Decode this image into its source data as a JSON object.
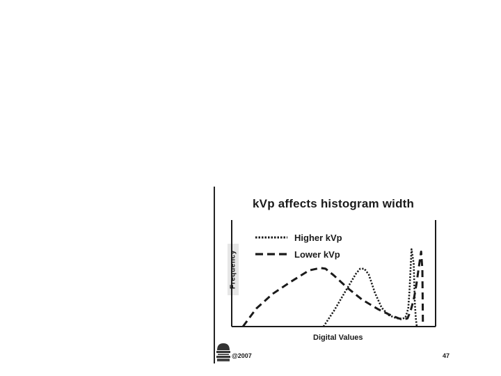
{
  "slide": {
    "copyright": "@2007",
    "page_number": "47"
  },
  "chart_data": {
    "type": "line",
    "title": "kVp affects histogram width",
    "xlabel": "Digital Values",
    "ylabel": "Frequency",
    "xlim": [
      0,
      100
    ],
    "ylim": [
      0,
      100
    ],
    "axes_ticks": "none",
    "grid": false,
    "legend_position": "top-left",
    "series": [
      {
        "name": "Higher  kVp",
        "style": "dotted",
        "color": "#1a1a1a",
        "x": [
          45.0,
          50.3,
          55.7,
          61.0,
          63.0,
          65.0,
          67.2,
          70.3,
          73.6,
          77.0,
          80.0,
          83.0,
          85.2,
          86.6,
          87.2,
          88.2,
          89.3,
          89.8,
          90.3,
          90.8
        ],
        "y": [
          0.0,
          20.0,
          43.0,
          65.0,
          71.0,
          71.0,
          64.0,
          41.0,
          23.0,
          14.0,
          11.0,
          9.0,
          11.0,
          22.0,
          44.0,
          95.0,
          77.0,
          30.0,
          10.0,
          0.0
        ]
      },
      {
        "name": "Lower  kVp",
        "style": "dashed",
        "color": "#1a1a1a",
        "x": [
          5.5,
          12.0,
          20.0,
          29.0,
          38.0,
          43.5,
          46.0,
          50.0,
          57.0,
          64.0,
          72.0,
          77.0,
          82.0,
          84.4,
          86.2,
          87.7,
          88.8,
          89.5,
          90.6,
          91.6,
          92.9,
          93.5,
          93.8
        ],
        "y": [
          0.0,
          22.0,
          40.0,
          55.0,
          69.0,
          72.0,
          71.0,
          63.0,
          47.0,
          33.0,
          21.0,
          15.0,
          10.0,
          9.0,
          10.0,
          19.0,
          29.0,
          36.0,
          52.0,
          70.0,
          92.0,
          70.0,
          0.0
        ]
      }
    ]
  }
}
